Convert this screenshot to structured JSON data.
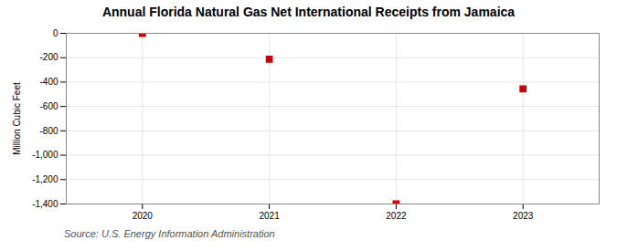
{
  "chart_data": {
    "type": "scatter",
    "title": "Annual Florida Natural Gas Net International Receipts from Jamaica",
    "ylabel": "Million Cubic Feet",
    "annotations": [
      "Source: U.S. Energy Information Administration"
    ],
    "x": [
      2020,
      2021,
      2022,
      2023
    ],
    "values": [
      -2,
      -213,
      -1398,
      -456
    ],
    "color": "#cc0000",
    "marker": "square",
    "xlim": [
      2019.4,
      2023.6
    ],
    "xticks": [
      2020,
      2021,
      2022,
      2023
    ],
    "ylim": [
      -1400,
      0
    ],
    "yticks": [
      0,
      -200,
      -400,
      -600,
      -800,
      {
        "value": -1000,
        "label": "-1,000"
      },
      {
        "value": -1200,
        "label": "-1,200"
      },
      {
        "value": -1400,
        "label": "-1,400"
      }
    ],
    "grid": true
  }
}
